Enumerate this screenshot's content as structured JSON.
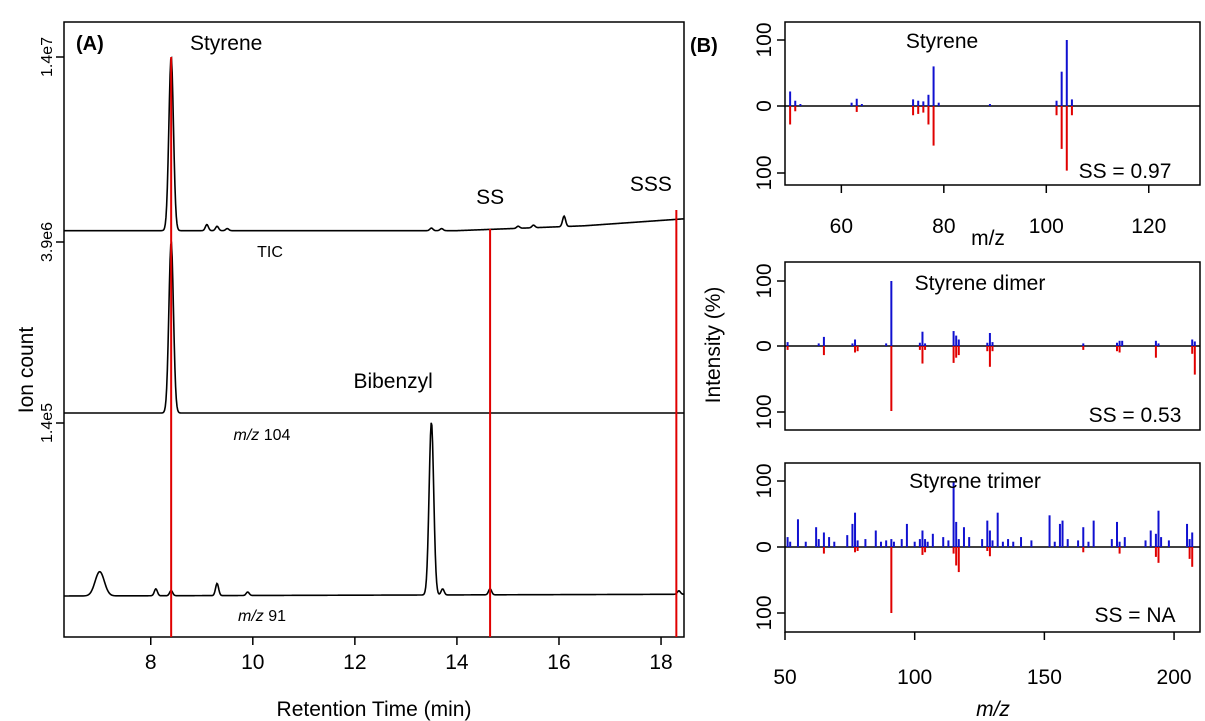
{
  "chart_data": [
    {
      "panel_label": "(A)",
      "type": "line",
      "xlabel": "Retention Time (min)",
      "ylabel": "Ion count",
      "xlim": [
        6.3,
        18.45
      ],
      "x_ticks": [
        "8",
        "10",
        "12",
        "14",
        "16",
        "18"
      ],
      "x_tick_values": [
        8,
        10,
        12,
        14,
        16,
        18
      ],
      "traces": [
        {
          "name": "TIC",
          "name_italic_part": "",
          "ymax_label": "1.4e7",
          "ymax": 14000000,
          "peaks": [
            [
              8.4,
              1.0
            ],
            [
              9.1,
              0.035
            ],
            [
              9.3,
              0.025
            ],
            [
              9.5,
              0.012
            ],
            [
              13.5,
              0.015
            ],
            [
              13.7,
              0.012
            ],
            [
              15.2,
              0.012
            ],
            [
              15.5,
              0.015
            ],
            [
              16.1,
              0.06
            ]
          ],
          "baseline": [
            [
              6.3,
              0.002
            ],
            [
              14.0,
              0.002
            ],
            [
              16.5,
              0.03
            ],
            [
              18.45,
              0.07
            ]
          ]
        },
        {
          "name": " 104",
          "name_italic_part": "m/z",
          "ymax_label": "3.9e6",
          "ymax": 3900000,
          "peaks": [
            [
              8.4,
              1.0
            ]
          ],
          "baseline": [
            [
              6.3,
              0.0
            ],
            [
              18.45,
              0.0
            ]
          ]
        },
        {
          "name": " 91",
          "name_italic_part": "m/z",
          "ymax_label": "1.4e5",
          "ymax": 140000,
          "peaks": [
            [
              7.0,
              0.14
            ],
            [
              8.1,
              0.04
            ],
            [
              8.4,
              0.03
            ],
            [
              9.3,
              0.07
            ],
            [
              9.9,
              0.02
            ],
            [
              13.5,
              1.0
            ],
            [
              13.72,
              0.035
            ],
            [
              14.65,
              0.035
            ],
            [
              18.35,
              0.02
            ]
          ],
          "baseline": [
            [
              6.3,
              0.0
            ],
            [
              18.45,
              0.01
            ]
          ]
        }
      ],
      "vertical_markers": [
        8.4,
        14.65,
        18.3
      ],
      "annotations": [
        {
          "text": "Styrene",
          "x": 8.4
        },
        {
          "text": "SS",
          "x": 14.65
        },
        {
          "text": "SSS",
          "x": 17.8
        },
        {
          "text": "Bibenzyl",
          "x": 12.75
        }
      ]
    },
    {
      "panel_label": "(B)",
      "type": "bar",
      "title": "Styrene",
      "ss_label": "SS = 0.97",
      "xlabel": "m/z",
      "xlim": [
        49,
        130
      ],
      "x_ticks": [
        "60",
        "80",
        "100",
        "120"
      ],
      "x_tick_values": [
        60,
        80,
        100,
        120
      ],
      "y_ticks": [
        "100",
        "0",
        "100"
      ],
      "series": [
        {
          "color": "#1010d0",
          "x": [
            50,
            51,
            52,
            62,
            63,
            64,
            74,
            75,
            76,
            77,
            78,
            79,
            89,
            102,
            103,
            104,
            105
          ],
          "values": [
            22,
            8,
            3,
            5,
            11,
            3,
            10,
            8,
            7,
            17,
            60,
            5,
            3,
            8,
            52,
            100,
            10
          ]
        },
        {
          "color": "#e00000",
          "x": [
            50,
            51,
            63,
            74,
            75,
            76,
            77,
            78,
            102,
            103,
            104,
            105
          ],
          "values": [
            -28,
            -8,
            -9,
            -14,
            -12,
            -10,
            -28,
            -60,
            -14,
            -65,
            -98,
            -14
          ]
        }
      ]
    },
    {
      "type": "bar",
      "title": "Styrene dimer",
      "ss_label": "SS = 0.53",
      "ylabel": "Intensity (%)",
      "xlim": [
        50,
        210
      ],
      "y_ticks": [
        "100",
        "0",
        "100"
      ],
      "series": [
        {
          "color": "#1010d0",
          "x": [
            51,
            63,
            65,
            76,
            77,
            89,
            91,
            102,
            103,
            104,
            115,
            116,
            117,
            128,
            129,
            130,
            165,
            178,
            179,
            180,
            193,
            194,
            207,
            208
          ],
          "values": [
            6,
            4,
            14,
            4,
            10,
            4,
            100,
            5,
            22,
            4,
            23,
            16,
            10,
            5,
            20,
            6,
            4,
            5,
            8,
            8,
            8,
            4,
            10,
            7
          ]
        },
        {
          "color": "#e00000",
          "x": [
            51,
            65,
            77,
            78,
            91,
            102,
            103,
            104,
            115,
            116,
            117,
            128,
            129,
            130,
            165,
            178,
            179,
            193,
            207,
            208
          ],
          "values": [
            -6,
            -14,
            -10,
            -8,
            -100,
            -6,
            -27,
            -6,
            -26,
            -18,
            -14,
            -8,
            -32,
            -8,
            -6,
            -8,
            -10,
            -18,
            -12,
            -44
          ]
        }
      ]
    },
    {
      "type": "bar",
      "title": "Styrene trimer",
      "ss_label": "SS = NA",
      "xlabel": "m/z",
      "xlabel_italic": true,
      "xlim": [
        50,
        210
      ],
      "x_ticks": [
        "50",
        "100",
        "150",
        "200"
      ],
      "x_tick_values": [
        50,
        100,
        150,
        200
      ],
      "y_ticks": [
        "100",
        "0",
        "100"
      ],
      "series": [
        {
          "color": "#1010d0",
          "x": [
            51,
            52,
            55,
            58,
            62,
            63,
            65,
            67,
            69,
            74,
            76,
            77,
            78,
            81,
            85,
            87,
            89,
            91,
            92,
            95,
            97,
            100,
            102,
            103,
            104,
            105,
            107,
            111,
            113,
            115,
            116,
            117,
            119,
            121,
            126,
            128,
            129,
            130,
            132,
            134,
            136,
            138,
            141,
            145,
            152,
            154,
            156,
            157,
            159,
            163,
            165,
            167,
            169,
            176,
            178,
            179,
            181,
            189,
            191,
            193,
            194,
            195,
            198,
            205,
            206,
            207
          ],
          "values": [
            15,
            8,
            42,
            8,
            30,
            12,
            22,
            15,
            8,
            18,
            35,
            52,
            10,
            12,
            25,
            8,
            10,
            12,
            8,
            12,
            35,
            8,
            12,
            25,
            12,
            8,
            20,
            15,
            10,
            98,
            38,
            12,
            30,
            15,
            12,
            40,
            25,
            10,
            52,
            8,
            12,
            8,
            15,
            10,
            48,
            8,
            35,
            40,
            12,
            10,
            30,
            8,
            40,
            12,
            38,
            8,
            15,
            10,
            25,
            20,
            55,
            15,
            10,
            35,
            12,
            22
          ]
        },
        {
          "color": "#e00000",
          "x": [
            65,
            77,
            78,
            91,
            103,
            104,
            115,
            116,
            117,
            128,
            129,
            165,
            179,
            193,
            194,
            206,
            207
          ],
          "values": [
            -10,
            -8,
            -6,
            -100,
            -12,
            -8,
            -10,
            -28,
            -38,
            -6,
            -14,
            -8,
            -10,
            -15,
            -24,
            -18,
            -30
          ]
        }
      ]
    }
  ]
}
